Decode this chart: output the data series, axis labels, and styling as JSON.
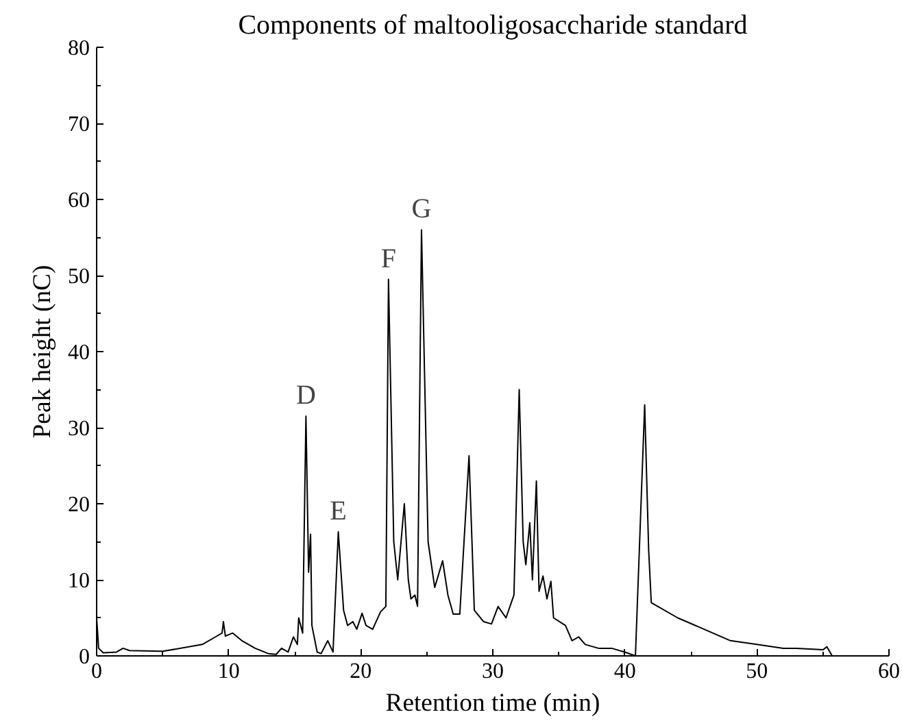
{
  "chart_data": {
    "type": "line",
    "title": "Components of maltooligosaccharide standard",
    "xlabel": "Retention time (min)",
    "ylabel": "Peak height (nC)",
    "x": [
      0,
      0.15,
      0.5,
      1.5,
      2,
      2.5,
      5,
      8,
      9,
      9.5,
      9.6,
      9.75,
      10.3,
      11,
      12,
      13,
      13.6,
      14,
      14.5,
      14.9,
      15.2,
      15.3,
      15.6,
      15.85,
      16.05,
      16.2,
      16.3,
      16.7,
      17,
      17.5,
      17.9,
      18.3,
      18.7,
      19,
      19.4,
      19.7,
      20.1,
      20.4,
      20.9,
      21.5,
      21.9,
      22.1,
      22.5,
      22.8,
      23.3,
      23.6,
      23.8,
      24.1,
      24.3,
      24.6,
      25.1,
      25.6,
      26.2,
      26.6,
      27,
      27.5,
      28.2,
      28.6,
      29.3,
      29.9,
      30.4,
      31,
      31.6,
      32,
      32.3,
      32.5,
      32.8,
      33,
      33.3,
      33.5,
      33.8,
      34.1,
      34.4,
      34.6,
      35.5,
      36,
      36.5,
      37,
      38,
      39,
      40,
      40.8,
      41.5,
      41.8,
      42,
      44,
      46,
      48,
      50,
      52,
      53,
      55,
      55.3,
      55.7
    ],
    "series": [
      {
        "color": "#000000",
        "values": [
          5,
          1,
          0.4,
          0.5,
          1,
          0.7,
          0.6,
          1.5,
          2.5,
          3,
          4.5,
          2.6,
          3,
          2,
          1,
          0.3,
          0.2,
          1,
          0.5,
          2.5,
          1.5,
          5,
          3,
          31.5,
          11,
          16,
          4,
          0.5,
          0.3,
          2,
          0.5,
          16.3,
          6,
          4,
          4.5,
          3.5,
          5.6,
          4,
          3.5,
          5.8,
          6.5,
          49.5,
          15,
          10,
          20,
          10,
          7.5,
          8,
          6.5,
          56,
          15,
          9,
          12.5,
          8,
          5.5,
          5.5,
          26.3,
          6,
          4.5,
          4.2,
          6.5,
          5,
          8,
          35,
          15,
          12,
          17.5,
          10,
          23,
          8.5,
          10.5,
          7.5,
          9.8,
          5,
          4,
          2,
          2.5,
          1.5,
          1,
          1,
          0.5,
          0,
          33,
          14,
          7,
          5,
          3.5,
          2,
          1.5,
          1,
          1,
          0.8,
          1.2,
          0
        ]
      }
    ],
    "annotations": [
      {
        "text": "D",
        "x": 15.85,
        "y": 31.5
      },
      {
        "text": "E",
        "x": 18.3,
        "y": 16.3
      },
      {
        "text": "F",
        "x": 22.1,
        "y": 49.5
      },
      {
        "text": "G",
        "x": 24.6,
        "y": 56
      }
    ],
    "xlim": [
      0,
      60
    ],
    "ylim": [
      0,
      80
    ],
    "xticks": [
      0,
      10,
      20,
      30,
      40,
      50,
      60
    ],
    "yticks": [
      0,
      10,
      20,
      30,
      40,
      50,
      60,
      70,
      80
    ],
    "grid": false,
    "marker": "none",
    "line_style": "solid"
  }
}
